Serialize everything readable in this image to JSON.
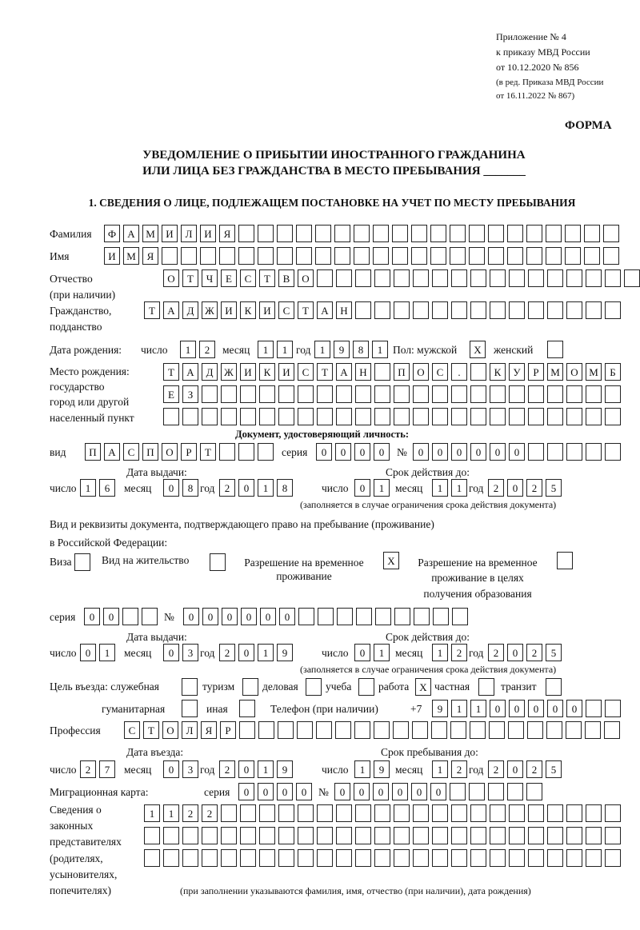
{
  "header": {
    "appendix": [
      "Приложение № 4",
      "к приказу МВД России",
      "от 10.12.2020 № 856"
    ],
    "revision": [
      "(в ред. Приказа МВД России",
      "от 16.11.2022 № 867)"
    ],
    "form_label": "ФОРМА",
    "title_line1": "УВЕДОМЛЕНИЕ О ПРИБЫТИИ ИНОСТРАННОГО ГРАЖДАНИНА",
    "title_line2": "ИЛИ ЛИЦА БЕЗ ГРАЖДАНСТВА В МЕСТО ПРЕБЫВАНИЯ _______",
    "section1": "1. СВЕДЕНИЯ О ЛИЦЕ, ПОДЛЕЖАЩЕМ ПОСТАНОВКЕ НА УЧЕТ ПО МЕСТУ ПРЕБЫВАНИЯ"
  },
  "labels": {
    "surname": "Фамилия",
    "name": "Имя",
    "patronymic": "Отчество",
    "patronymic_note": "(при наличии)",
    "citizenship": "Гражданство,",
    "citizenship2": "подданство",
    "dob": "Дата рождения:",
    "day": "число",
    "month": "месяц",
    "year": "год",
    "sex": "Пол: мужской",
    "female": "женский",
    "birthplace": [
      "Место рождения:",
      "государство",
      "город или другой",
      "населенный пункт"
    ],
    "id_doc": "Документ, удостоверяющий личность:",
    "kind": "вид",
    "series": "серия",
    "number": "№",
    "issue_date": "Дата выдачи:",
    "valid_until": "Срок действия до:",
    "valid_note": "(заполняется в случае ограничения срока действия документа)",
    "right_doc1": "Вид и реквизиты документа, подтверждающего право на пребывание (проживание)",
    "right_doc2": "в Российской Федерации:",
    "visa": "Виза",
    "residence": "Вид на жительство",
    "temp_res1": "Разрешение на временное",
    "temp_res2": "проживание",
    "temp_edu1": "Разрешение на временное",
    "temp_edu2": "проживание в целях",
    "temp_edu3": "получения образования",
    "purpose": "Цель въезда: служебная",
    "tourism": "туризм",
    "business": "деловая",
    "study": "учеба",
    "work": "работа",
    "private": "частная",
    "transit": "транзит",
    "humanitarian": "гуманитарная",
    "other": "иная",
    "phone": "Телефон (при наличии)",
    "phone_prefix": "+7",
    "profession": "Профессия",
    "entry_date": "Дата въезда:",
    "stay_until": "Срок пребывания до:",
    "migration_card": "Миграционная карта:",
    "representatives": [
      "Сведения о",
      "законных",
      "представителях",
      "(родителях,",
      "усыновителях,",
      "попечителях)"
    ],
    "rep_note": "(при заполнении указываются фамилия, имя, отчество (при наличии), дата рождения)"
  },
  "fields": {
    "surname": [
      "Ф",
      "А",
      "М",
      "И",
      "Л",
      "И",
      "Я",
      "",
      "",
      "",
      "",
      "",
      "",
      "",
      "",
      "",
      "",
      "",
      "",
      "",
      "",
      "",
      "",
      "",
      "",
      "",
      ""
    ],
    "name": [
      "И",
      "М",
      "Я",
      "",
      "",
      "",
      "",
      "",
      "",
      "",
      "",
      "",
      "",
      "",
      "",
      "",
      "",
      "",
      "",
      "",
      "",
      "",
      "",
      "",
      "",
      "",
      ""
    ],
    "patronymic": [
      "О",
      "Т",
      "Ч",
      "Е",
      "С",
      "Т",
      "В",
      "О",
      "",
      "",
      "",
      "",
      "",
      "",
      "",
      "",
      "",
      "",
      "",
      "",
      "",
      "",
      "",
      "",
      ""
    ],
    "citizenship": [
      "Т",
      "А",
      "Д",
      "Ж",
      "И",
      "К",
      "И",
      "С",
      "Т",
      "А",
      "Н",
      "",
      "",
      "",
      "",
      "",
      "",
      "",
      "",
      "",
      "",
      "",
      "",
      "",
      ""
    ],
    "dob_day": [
      "1",
      "2"
    ],
    "dob_month": [
      "1",
      "1"
    ],
    "dob_year": [
      "1",
      "9",
      "8",
      "1"
    ],
    "sex_male": [
      "X"
    ],
    "sex_female": [
      ""
    ],
    "birthplace1": [
      "Т",
      "А",
      "Д",
      "Ж",
      "И",
      "К",
      "И",
      "С",
      "Т",
      "А",
      "Н",
      "",
      "П",
      "О",
      "С",
      ".",
      "",
      "К",
      "У",
      "Р",
      "М",
      "О",
      "М",
      "Б"
    ],
    "birthplace2": [
      "Е",
      "З",
      "",
      "",
      "",
      "",
      "",
      "",
      "",
      "",
      "",
      "",
      "",
      "",
      "",
      "",
      "",
      "",
      "",
      "",
      "",
      "",
      "",
      ""
    ],
    "birthplace3": [
      "",
      "",
      "",
      "",
      "",
      "",
      "",
      "",
      "",
      "",
      "",
      "",
      "",
      "",
      "",
      "",
      "",
      "",
      "",
      "",
      "",
      "",
      "",
      ""
    ],
    "id_kind": [
      "П",
      "А",
      "С",
      "П",
      "О",
      "Р",
      "Т",
      "",
      "",
      ""
    ],
    "id_series": [
      "0",
      "0",
      "0",
      "0"
    ],
    "id_number": [
      "0",
      "0",
      "0",
      "0",
      "0",
      "0",
      "",
      "",
      "",
      "",
      ""
    ],
    "id_issue_day": [
      "1",
      "6"
    ],
    "id_issue_month": [
      "0",
      "8"
    ],
    "id_issue_year": [
      "2",
      "0",
      "1",
      "8"
    ],
    "id_valid_day": [
      "0",
      "1"
    ],
    "id_valid_month": [
      "1",
      "1"
    ],
    "id_valid_year": [
      "2",
      "0",
      "2",
      "5"
    ],
    "visa": [
      ""
    ],
    "residence": [
      ""
    ],
    "temp_res": [
      "X"
    ],
    "temp_edu": [
      ""
    ],
    "rd_series": [
      "0",
      "0",
      "",
      ""
    ],
    "rd_number": [
      "0",
      "0",
      "0",
      "0",
      "0",
      "0",
      "",
      "",
      "",
      "",
      "",
      "",
      "",
      "",
      ""
    ],
    "rd_issue_day": [
      "0",
      "1"
    ],
    "rd_issue_month": [
      "0",
      "3"
    ],
    "rd_issue_year": [
      "2",
      "0",
      "1",
      "9"
    ],
    "rd_valid_day": [
      "0",
      "1"
    ],
    "rd_valid_month": [
      "1",
      "2"
    ],
    "rd_valid_year": [
      "2",
      "0",
      "2",
      "5"
    ],
    "p_official": [
      ""
    ],
    "p_tourism": [
      ""
    ],
    "p_business": [
      ""
    ],
    "p_study": [
      ""
    ],
    "p_work": [
      "X"
    ],
    "p_private": [
      ""
    ],
    "p_transit": [
      ""
    ],
    "p_humanitarian": [
      ""
    ],
    "p_other": [
      ""
    ],
    "phone": [
      "9",
      "1",
      "1",
      "0",
      "0",
      "0",
      "0",
      "0",
      "",
      ""
    ],
    "profession": [
      "С",
      "Т",
      "О",
      "Л",
      "Я",
      "Р",
      "",
      "",
      "",
      "",
      "",
      "",
      "",
      "",
      "",
      "",
      "",
      "",
      "",
      "",
      "",
      "",
      "",
      "",
      "",
      ""
    ],
    "entry_day": [
      "2",
      "7"
    ],
    "entry_month": [
      "0",
      "3"
    ],
    "entry_year": [
      "2",
      "0",
      "1",
      "9"
    ],
    "stay_day": [
      "1",
      "9"
    ],
    "stay_month": [
      "1",
      "2"
    ],
    "stay_year": [
      "2",
      "0",
      "2",
      "5"
    ],
    "mc_series": [
      "0",
      "0",
      "0",
      "0"
    ],
    "mc_number": [
      "0",
      "0",
      "0",
      "0",
      "0",
      "0",
      "",
      "",
      "",
      "",
      ""
    ],
    "rep1": [
      "1",
      "1",
      "2",
      "2",
      "",
      "",
      "",
      "",
      "",
      "",
      "",
      "",
      "",
      "",
      "",
      "",
      "",
      "",
      "",
      "",
      "",
      "",
      "",
      "",
      ""
    ],
    "rep2": [
      "",
      "",
      "",
      "",
      "",
      "",
      "",
      "",
      "",
      "",
      "",
      "",
      "",
      "",
      "",
      "",
      "",
      "",
      "",
      "",
      "",
      "",
      "",
      "",
      ""
    ],
    "rep3": [
      "",
      "",
      "",
      "",
      "",
      "",
      "",
      "",
      "",
      "",
      "",
      "",
      "",
      "",
      "",
      "",
      "",
      "",
      "",
      "",
      "",
      "",
      "",
      "",
      ""
    ]
  }
}
